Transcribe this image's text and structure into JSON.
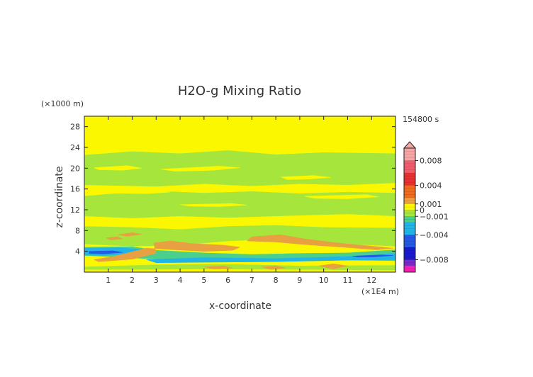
{
  "chart_data": {
    "type": "heatmap",
    "title": "H2O-g Mixing Ratio",
    "xlabel": "x-coordinate",
    "ylabel": "z-coordinate",
    "x_unit": "(×1E4 m)",
    "y_unit": "(×1000 m)",
    "time_label": "154800 s",
    "xlim": [
      0,
      13
    ],
    "ylim": [
      0,
      30
    ],
    "x_ticks": [
      1,
      2,
      3,
      4,
      5,
      6,
      7,
      8,
      9,
      10,
      11,
      12
    ],
    "y_ticks": [
      4,
      8,
      12,
      16,
      20,
      24,
      28
    ],
    "colorbar": {
      "tick_labels": [
        "0.008",
        "0.004",
        "0.001",
        "0",
        "−0.001",
        "−0.004",
        "−0.008"
      ],
      "tick_values": [
        0.008,
        0.004,
        0.001,
        0,
        -0.001,
        -0.004,
        -0.008
      ],
      "range": [
        -0.01,
        0.01
      ],
      "extend": "max",
      "levels": [
        {
          "min": 0.008,
          "max": 0.01,
          "color": "#f4a6a6"
        },
        {
          "min": 0.006,
          "max": 0.008,
          "color": "#ef5c6e"
        },
        {
          "min": 0.004,
          "max": 0.006,
          "color": "#e83030"
        },
        {
          "min": 0.002,
          "max": 0.004,
          "color": "#ef6a1c"
        },
        {
          "min": 0.001,
          "max": 0.002,
          "color": "#e8a040"
        },
        {
          "min": 0.0,
          "max": 0.001,
          "color": "#fbf700"
        },
        {
          "min": -0.001,
          "max": 0.0,
          "color": "#a6e63c"
        },
        {
          "min": -0.002,
          "max": -0.001,
          "color": "#4ad08c"
        },
        {
          "min": -0.004,
          "max": -0.002,
          "color": "#21b4e6"
        },
        {
          "min": -0.006,
          "max": -0.004,
          "color": "#2458e6"
        },
        {
          "min": -0.008,
          "max": -0.006,
          "color": "#1a1acc"
        },
        {
          "min": -0.009,
          "max": -0.008,
          "color": "#7a28c8"
        },
        {
          "min": -0.01,
          "max": -0.009,
          "color": "#f020b0"
        }
      ]
    },
    "field": {
      "background": "#fbf700",
      "regions": [
        {
          "value": -0.0008,
          "color": "#a6e63c",
          "points": [
            [
              0,
              22.5
            ],
            [
              2,
              23.2
            ],
            [
              4,
              22.8
            ],
            [
              6,
              23.4
            ],
            [
              8,
              22.6
            ],
            [
              10,
              23.0
            ],
            [
              13,
              22.8
            ],
            [
              13,
              17.2
            ],
            [
              11,
              16.8
            ],
            [
              9,
              17.0
            ],
            [
              7,
              16.6
            ],
            [
              5,
              17.0
            ],
            [
              3,
              16.5
            ],
            [
              0,
              16.8
            ]
          ]
        },
        {
          "value": -0.0006,
          "color": "#a6e63c",
          "points": [
            [
              1,
              15.0
            ],
            [
              3,
              15.6
            ],
            [
              5,
              15.2
            ],
            [
              7,
              15.5
            ],
            [
              9,
              15.1
            ],
            [
              11,
              15.4
            ],
            [
              13,
              15.2
            ],
            [
              13,
              10.8
            ],
            [
              11,
              11.2
            ],
            [
              8,
              10.8
            ],
            [
              6,
              10.5
            ],
            [
              4,
              10.8
            ],
            [
              2,
              10.4
            ],
            [
              0,
              10.8
            ],
            [
              0,
              14.6
            ]
          ]
        },
        {
          "value": -0.0007,
          "color": "#a6e63c",
          "points": [
            [
              0,
              8.8
            ],
            [
              2,
              8.6
            ],
            [
              4,
              8.2
            ],
            [
              6,
              8.8
            ],
            [
              8,
              9.0
            ],
            [
              10,
              8.6
            ],
            [
              13,
              8.5
            ],
            [
              13,
              5.0
            ],
            [
              10,
              5.6
            ],
            [
              8,
              6.4
            ],
            [
              6,
              6.0
            ],
            [
              4,
              5.2
            ],
            [
              2,
              5.0
            ],
            [
              0,
              5.4
            ]
          ]
        },
        {
          "value": 0.0003,
          "color": "#fbf700",
          "points": [
            [
              0.4,
              20.1
            ],
            [
              1.8,
              20.5
            ],
            [
              2.4,
              20.0
            ],
            [
              1.6,
              19.6
            ],
            [
              0.6,
              19.7
            ]
          ]
        },
        {
          "value": 0.0003,
          "color": "#fbf700",
          "points": [
            [
              3.2,
              19.8
            ],
            [
              5.6,
              20.4
            ],
            [
              6.5,
              20.1
            ],
            [
              5.4,
              19.6
            ],
            [
              3.8,
              19.4
            ]
          ]
        },
        {
          "value": 0.0003,
          "color": "#fbf700",
          "points": [
            [
              8.2,
              18.3
            ],
            [
              9.6,
              18.6
            ],
            [
              10.3,
              18.2
            ],
            [
              9.4,
              17.9
            ],
            [
              8.5,
              17.8
            ]
          ]
        },
        {
          "value": 0.0003,
          "color": "#fbf700",
          "points": [
            [
              0.8,
              15.6
            ],
            [
              3.0,
              15.9
            ],
            [
              3.6,
              15.4
            ],
            [
              2.6,
              15.1
            ],
            [
              1.0,
              15.2
            ]
          ]
        },
        {
          "value": 0.0003,
          "color": "#fbf700",
          "points": [
            [
              9.2,
              14.6
            ],
            [
              11.8,
              14.9
            ],
            [
              12.3,
              14.5
            ],
            [
              11.0,
              14.1
            ],
            [
              9.6,
              14.2
            ]
          ]
        },
        {
          "value": 0.0003,
          "color": "#fbf700",
          "points": [
            [
              4.0,
              13.0
            ],
            [
              6.2,
              13.2
            ],
            [
              6.8,
              12.9
            ],
            [
              5.6,
              12.6
            ],
            [
              4.4,
              12.7
            ]
          ]
        },
        {
          "value": -0.0012,
          "color": "#4ad08c",
          "points": [
            [
              0,
              4.8
            ],
            [
              2,
              4.9
            ],
            [
              3,
              4.2
            ],
            [
              5,
              3.7
            ],
            [
              7,
              3.4
            ],
            [
              9,
              3.6
            ],
            [
              11,
              3.7
            ],
            [
              13,
              4.3
            ],
            [
              13,
              2.2
            ],
            [
              11,
              2.3
            ],
            [
              9,
              2.2
            ],
            [
              7,
              2.0
            ],
            [
              5,
              2.2
            ],
            [
              3,
              2.5
            ],
            [
              1,
              3.0
            ],
            [
              0,
              3.2
            ]
          ]
        },
        {
          "value": -0.0025,
          "color": "#21b4e6",
          "points": [
            [
              0,
              4.6
            ],
            [
              1.5,
              4.7
            ],
            [
              2.8,
              4.2
            ],
            [
              2.0,
              3.6
            ],
            [
              0.8,
              3.2
            ],
            [
              0,
              3.3
            ]
          ]
        },
        {
          "value": -0.0025,
          "color": "#21b4e6",
          "points": [
            [
              2.6,
              2.4
            ],
            [
              5,
              2.8
            ],
            [
              8,
              2.6
            ],
            [
              11,
              3.0
            ],
            [
              13,
              3.6
            ],
            [
              13,
              2.4
            ],
            [
              11,
              2.3
            ],
            [
              8,
              2.0
            ],
            [
              5,
              1.9
            ],
            [
              3,
              1.8
            ]
          ]
        },
        {
          "value": -0.0045,
          "color": "#2458e6",
          "points": [
            [
              0.2,
              4.0
            ],
            [
              1.2,
              4.1
            ],
            [
              1.6,
              3.8
            ],
            [
              0.8,
              3.5
            ],
            [
              0.2,
              3.6
            ]
          ]
        },
        {
          "value": -0.0045,
          "color": "#2458e6",
          "points": [
            [
              11.2,
              3.1
            ],
            [
              12.4,
              3.3
            ],
            [
              12.9,
              3.2
            ],
            [
              12.1,
              2.9
            ],
            [
              11.4,
              2.9
            ]
          ]
        },
        {
          "value": -0.0003,
          "color": "#a6e63c",
          "points": [
            [
              0,
              1.0
            ],
            [
              3,
              1.4
            ],
            [
              6,
              1.5
            ],
            [
              9,
              1.2
            ],
            [
              13,
              1.3
            ],
            [
              13,
              0.4
            ],
            [
              9,
              0.5
            ],
            [
              5,
              0.6
            ],
            [
              2,
              0.5
            ],
            [
              0,
              0.5
            ]
          ]
        },
        {
          "value": 0.0015,
          "color": "#e8a040",
          "points": [
            [
              2.9,
              5.6
            ],
            [
              3.6,
              6.0
            ],
            [
              4.5,
              5.5
            ],
            [
              5.8,
              5.2
            ],
            [
              6.5,
              4.8
            ],
            [
              6.2,
              4.2
            ],
            [
              5.0,
              4.0
            ],
            [
              3.8,
              4.3
            ],
            [
              2.6,
              4.6
            ],
            [
              1.2,
              3.0
            ],
            [
              0.4,
              2.4
            ],
            [
              0.6,
              2.0
            ],
            [
              2.0,
              2.5
            ],
            [
              3.0,
              3.6
            ]
          ]
        },
        {
          "value": 0.0012,
          "color": "#e8a040",
          "points": [
            [
              7.0,
              6.8
            ],
            [
              8.2,
              7.2
            ],
            [
              9.2,
              6.4
            ],
            [
              10.6,
              5.6
            ],
            [
              12.0,
              5.0
            ],
            [
              12.9,
              4.6
            ],
            [
              12.2,
              4.3
            ],
            [
              10.8,
              4.8
            ],
            [
              9.2,
              5.3
            ],
            [
              8.0,
              5.8
            ],
            [
              6.8,
              6.0
            ]
          ]
        },
        {
          "value": 0.0011,
          "color": "#e8a040",
          "points": [
            [
              1.4,
              7.2
            ],
            [
              2.0,
              7.6
            ],
            [
              2.4,
              7.3
            ],
            [
              1.8,
              6.9
            ]
          ]
        },
        {
          "value": 0.0011,
          "color": "#e8a040",
          "points": [
            [
              0.9,
              6.6
            ],
            [
              1.4,
              6.8
            ],
            [
              1.6,
              6.4
            ],
            [
              1.1,
              6.2
            ]
          ]
        },
        {
          "value": 0.0011,
          "color": "#e8a040",
          "points": [
            [
              9.8,
              1.2
            ],
            [
              10.4,
              1.6
            ],
            [
              11.0,
              1.2
            ],
            [
              10.4,
              0.6
            ]
          ]
        },
        {
          "value": 0.0011,
          "color": "#e8a040",
          "points": [
            [
              7.4,
              1.0
            ],
            [
              8.0,
              1.2
            ],
            [
              8.4,
              0.8
            ],
            [
              7.8,
              0.5
            ]
          ]
        },
        {
          "value": 0.0011,
          "color": "#e8a040",
          "points": [
            [
              5.0,
              1.0
            ],
            [
              5.8,
              1.2
            ],
            [
              6.2,
              0.8
            ],
            [
              5.4,
              0.6
            ]
          ]
        }
      ]
    }
  }
}
